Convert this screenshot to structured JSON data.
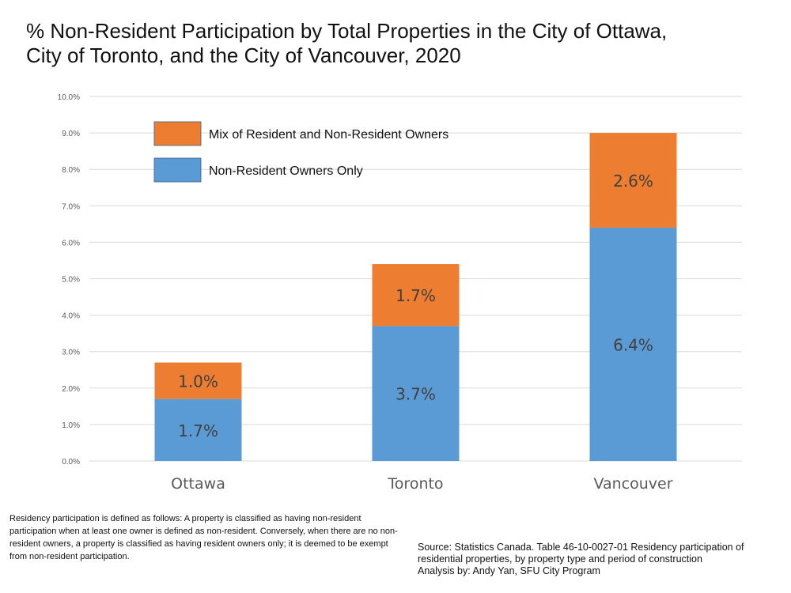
{
  "title_lines": [
    "% Non-Resident Participation by Total Properties in the City of Ottawa,",
    "City of Toronto, and the City of Vancouver, 2020"
  ],
  "note": "Residency participation is defined as follows: A property is classified as having non-resident participation when at least one owner is defined as non-resident. Conversely, when there are no non-resident owners, a property is classified as having resident owners only; it is deemed to be exempt from non-resident participation.",
  "source_lines": [
    "Source: Statistics Canada. Table 46-10-0027-01  Residency participation of",
    "residential properties, by property type and period of construction",
    "Analysis by: Andy Yan, SFU City Program"
  ],
  "colors": {
    "non_resident_only": "#5b9bd5",
    "mix": "#ed7d31",
    "grid": "#d9d9d9",
    "tick_text": "#595959"
  },
  "chart_data": {
    "type": "bar",
    "stacked": true,
    "categories": [
      "Ottawa",
      "Toronto",
      "Vancouver"
    ],
    "series": [
      {
        "name": "Non-Resident Owners Only",
        "values": [
          1.7,
          3.7,
          6.4
        ],
        "labels": [
          "1.7%",
          "3.7%",
          "6.4%"
        ]
      },
      {
        "name": "Mix of Resident and Non-Resident Owners",
        "values": [
          1.0,
          1.7,
          2.6
        ],
        "labels": [
          "1.0%",
          "1.7%",
          "2.6%"
        ]
      }
    ],
    "ylim": [
      0,
      10
    ],
    "yticks": [
      "0.0%",
      "1.0%",
      "2.0%",
      "3.0%",
      "4.0%",
      "5.0%",
      "6.0%",
      "7.0%",
      "8.0%",
      "9.0%",
      "10.0%"
    ],
    "legend_order": [
      "Mix of Resident and Non-Resident Owners",
      "Non-Resident Owners Only"
    ],
    "legend_position": "top-left",
    "grid": true
  }
}
